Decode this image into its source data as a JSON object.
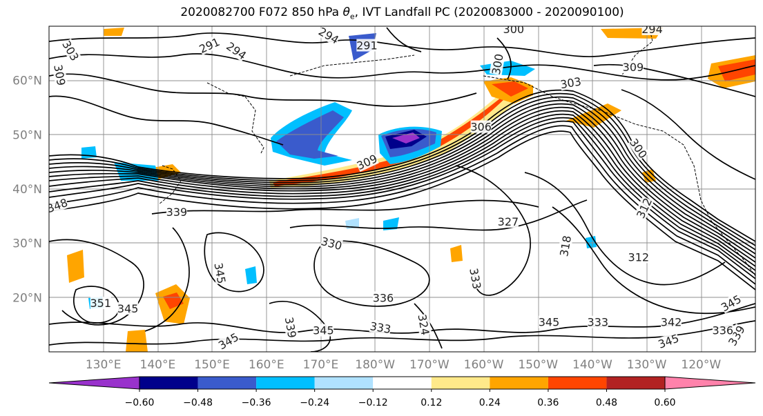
{
  "title": {
    "prefix": "2020082700 F072 850 hPa ",
    "var_symbol": "θ",
    "var_sub": "e",
    "suffix": ", IVT Landfall PC (2020083000 - 2020090100)"
  },
  "map": {
    "projection": "PlateCarree",
    "lon_range": [
      120,
      250
    ],
    "lat_range": [
      10,
      70
    ],
    "grid": true,
    "lat_ticks": [
      {
        "lat": 60,
        "label": "60°N"
      },
      {
        "lat": 50,
        "label": "50°N"
      },
      {
        "lat": 40,
        "label": "40°N"
      },
      {
        "lat": 30,
        "label": "30°N"
      },
      {
        "lat": 20,
        "label": "20°N"
      }
    ],
    "lon_ticks": [
      {
        "lon": 130,
        "label": "130°E"
      },
      {
        "lon": 140,
        "label": "140°E"
      },
      {
        "lon": 150,
        "label": "150°E"
      },
      {
        "lon": 160,
        "label": "160°E"
      },
      {
        "lon": 170,
        "label": "170°E"
      },
      {
        "lon": 180,
        "label": "180°W"
      },
      {
        "lon": 190,
        "label": "170°W"
      },
      {
        "lon": 200,
        "label": "160°W"
      },
      {
        "lon": 210,
        "label": "150°W"
      },
      {
        "lon": 220,
        "label": "140°W"
      },
      {
        "lon": 230,
        "label": "130°W"
      },
      {
        "lon": 240,
        "label": "120°W"
      }
    ],
    "contour_labels": [
      {
        "text": "291",
        "lon": 149.5,
        "lat": 66.5,
        "rot": 25
      },
      {
        "text": "294",
        "lon": 154.5,
        "lat": 65.5,
        "rot": -35
      },
      {
        "text": "294",
        "lon": 171.5,
        "lat": 68.3,
        "rot": -30
      },
      {
        "text": "291",
        "lon": 178.5,
        "lat": 66.5,
        "rot": 0
      },
      {
        "text": "300",
        "lon": 205.5,
        "lat": 69.5,
        "rot": 0
      },
      {
        "text": "300",
        "lon": 202.5,
        "lat": 63.0,
        "rot": 80
      },
      {
        "text": "294",
        "lon": 231.0,
        "lat": 69.5,
        "rot": 0
      },
      {
        "text": "309",
        "lon": 227.5,
        "lat": 62.5,
        "rot": 0
      },
      {
        "text": "303",
        "lon": 216.0,
        "lat": 59.6,
        "rot": 10
      },
      {
        "text": "309",
        "lon": 122.0,
        "lat": 61.0,
        "rot": -80
      },
      {
        "text": "303",
        "lon": 124.0,
        "lat": 65.5,
        "rot": -60
      },
      {
        "text": "306",
        "lon": 199.5,
        "lat": 51.5,
        "rot": 0
      },
      {
        "text": "309",
        "lon": 178.5,
        "lat": 45.0,
        "rot": 25
      },
      {
        "text": "300",
        "lon": 228.5,
        "lat": 47.5,
        "rot": -55
      },
      {
        "text": "312",
        "lon": 229.5,
        "lat": 36.5,
        "rot": 65
      },
      {
        "text": "327",
        "lon": 204.5,
        "lat": 34.0,
        "rot": 0
      },
      {
        "text": "318",
        "lon": 215.0,
        "lat": 29.5,
        "rot": 80
      },
      {
        "text": "312",
        "lon": 228.5,
        "lat": 27.5,
        "rot": 0
      },
      {
        "text": "339",
        "lon": 143.5,
        "lat": 35.8,
        "rot": 0
      },
      {
        "text": "330",
        "lon": 172.0,
        "lat": 30.0,
        "rot": -15
      },
      {
        "text": "345",
        "lon": 151.5,
        "lat": 24.5,
        "rot": -80
      },
      {
        "text": "348",
        "lon": 121.5,
        "lat": 37.0,
        "rot": 20
      },
      {
        "text": "351",
        "lon": 129.5,
        "lat": 19.0,
        "rot": 0
      },
      {
        "text": "345",
        "lon": 134.5,
        "lat": 18.0,
        "rot": 0
      },
      {
        "text": "339",
        "lon": 164.5,
        "lat": 14.5,
        "rot": -80
      },
      {
        "text": "345",
        "lon": 170.5,
        "lat": 14.0,
        "rot": 0
      },
      {
        "text": "345",
        "lon": 153.0,
        "lat": 12.0,
        "rot": 30
      },
      {
        "text": "336",
        "lon": 181.5,
        "lat": 20.0,
        "rot": 0
      },
      {
        "text": "333",
        "lon": 181.0,
        "lat": 14.5,
        "rot": -10
      },
      {
        "text": "324",
        "lon": 189.0,
        "lat": 15.0,
        "rot": -80
      },
      {
        "text": "333",
        "lon": 198.5,
        "lat": 23.5,
        "rot": -80
      },
      {
        "text": "345",
        "lon": 212.0,
        "lat": 15.5,
        "rot": 0
      },
      {
        "text": "333",
        "lon": 221.0,
        "lat": 15.5,
        "rot": 0
      },
      {
        "text": "342",
        "lon": 234.5,
        "lat": 15.5,
        "rot": 0
      },
      {
        "text": "345",
        "lon": 234.0,
        "lat": 12.0,
        "rot": 20
      },
      {
        "text": "345",
        "lon": 245.5,
        "lat": 19.0,
        "rot": 30
      },
      {
        "text": "339",
        "lon": 246.5,
        "lat": 13.0,
        "rot": 60
      },
      {
        "text": "336",
        "lon": 244.0,
        "lat": 14.0,
        "rot": 0
      }
    ]
  },
  "colorbar": {
    "extend": "both",
    "levels": [
      -0.72,
      -0.6,
      -0.48,
      -0.36,
      -0.24,
      -0.12,
      0.12,
      0.24,
      0.36,
      0.48,
      0.6,
      0.72
    ],
    "colors": [
      "#9932CC",
      "#00008B",
      "#3A5BCC",
      "#00BFFF",
      "#B0E2FF",
      "#FFFFFF",
      "#FFE98A",
      "#FFA500",
      "#FF4500",
      "#B22222",
      "#FF82AB"
    ],
    "tick_labels": [
      "−0.60",
      "−0.48",
      "−0.36",
      "−0.24",
      "−0.12",
      "0.12",
      "0.24",
      "0.36",
      "0.48",
      "0.60"
    ]
  }
}
